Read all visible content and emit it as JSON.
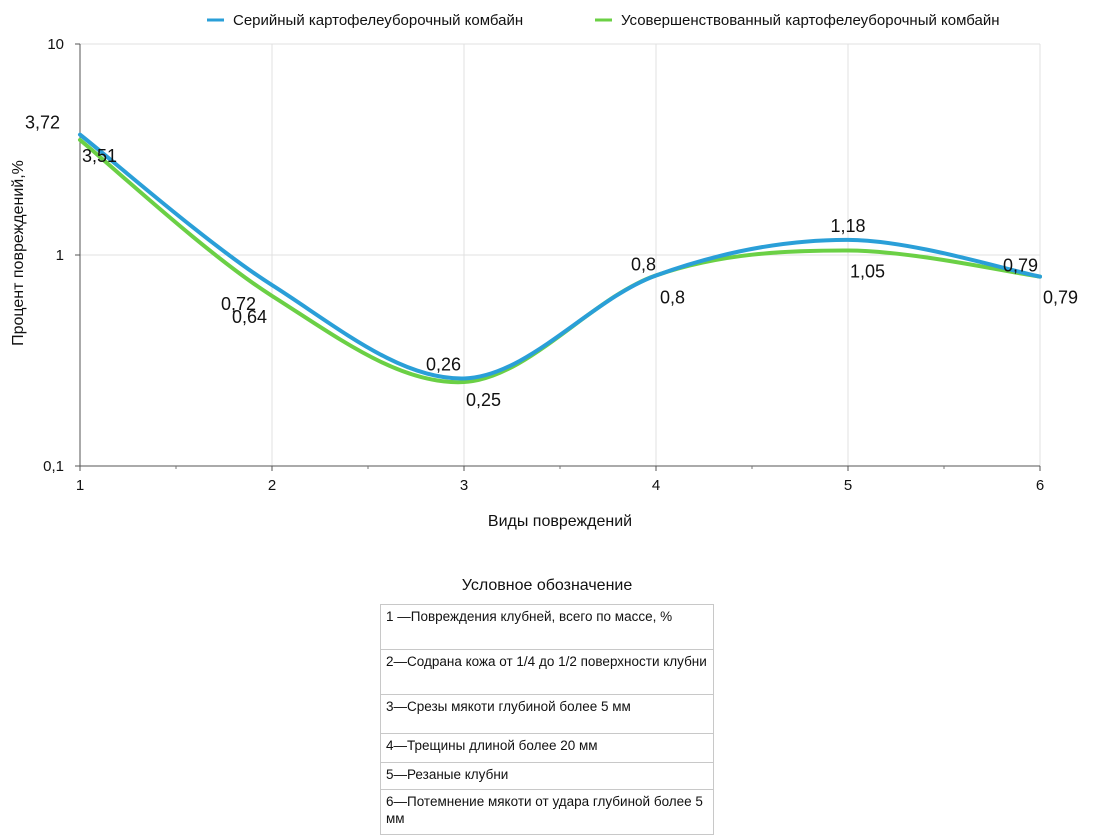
{
  "chart_data": {
    "type": "line",
    "xlabel": "Виды повреждений",
    "ylabel": "Процент повреждений,%",
    "x": [
      1,
      2,
      3,
      4,
      5,
      6
    ],
    "x_ticks": [
      "1",
      "2",
      "3",
      "4",
      "5",
      "6"
    ],
    "y_scale": "log",
    "ylim": [
      0.1,
      10
    ],
    "y_ticks": [
      "0,1",
      "1",
      "10"
    ],
    "grid": true,
    "legend_position": "top",
    "series": [
      {
        "name": "Серийный картофелеуборочный комбайн",
        "color": "#2a9fd8",
        "values": [
          3.72,
          0.72,
          0.26,
          0.8,
          1.18,
          0.79
        ],
        "labels": [
          "3,72",
          "0,72",
          "0,26",
          "0,8",
          "1,18",
          "0,79"
        ]
      },
      {
        "name": "Усовершенствованный картофелеуборочный комбайн",
        "color": "#6bd045",
        "values": [
          3.51,
          0.64,
          0.25,
          0.8,
          1.05,
          0.79
        ],
        "labels": [
          "3,51",
          "0,64",
          "0,25",
          "0,8",
          "1,05",
          "0,79"
        ]
      }
    ]
  },
  "legend_table": {
    "caption": "Условное обозначение",
    "rows": [
      "1 —Повреждения клубней, всего по массе, %",
      "2—Содрана кожа от 1/4 до 1/2 поверхности клубни",
      "3—Срезы мякоти глубиной более 5 мм",
      "4—Трещины длиной более 20 мм",
      "5—Резаные клубни",
      "6—Потемнение мякоти от удара глубиной более 5 мм"
    ]
  }
}
